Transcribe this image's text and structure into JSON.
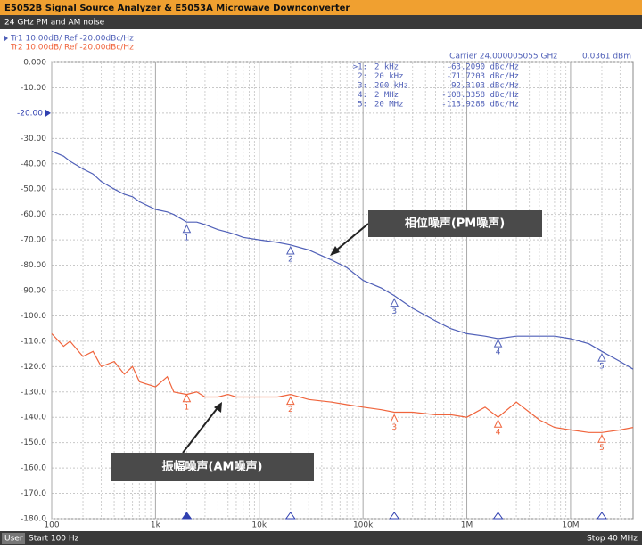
{
  "header": {
    "title": "E5052B Signal Source Analyzer & E5053A Microwave Downconverter",
    "subtitle": "24 GHz PM and AM noise"
  },
  "footer": {
    "mode": "User",
    "start": "Start 100 Hz",
    "stop": "Stop 40 MHz"
  },
  "chart_data": {
    "type": "line",
    "log_x": true,
    "grid": true,
    "minor_grid": true,
    "legend": [
      "Tr1 10.00dB/ Ref -20.00dBc/Hz",
      "Tr2 10.00dB/ Ref -20.00dBc/Hz"
    ],
    "carrier": "Carrier 24.000005055 GHz",
    "power": "0.0361 dBm",
    "reference": -20,
    "marker_table": [
      [
        ">1:",
        "2 kHz",
        "-63.2090 dBc/Hz"
      ],
      [
        "2:",
        "20 kHz",
        "-71.7203 dBc/Hz"
      ],
      [
        "3:",
        "200 kHz",
        "-92.3103 dBc/Hz"
      ],
      [
        "4:",
        "2 MHz",
        "-108.3358 dBc/Hz"
      ],
      [
        "5:",
        "20 MHz",
        "-113.9288 dBc/Hz"
      ]
    ],
    "annotations": [
      "相位噪声(PM噪声)",
      "振幅噪声(AM噪声)"
    ],
    "xlim": [
      100,
      40000000
    ],
    "ylim": [
      -180,
      0
    ],
    "xticks": [
      100,
      {
        "value": 1000,
        "label": "1k"
      },
      {
        "value": 10000,
        "label": "10k"
      },
      {
        "value": 100000,
        "label": "100k"
      },
      {
        "value": 1000000,
        "label": "1M"
      },
      {
        "value": 10000000,
        "label": "10M"
      }
    ],
    "yticks": [
      {
        "value": 0,
        "label": "0.000"
      },
      {
        "value": -10,
        "label": "-10.00"
      },
      {
        "value": -20,
        "label": "-20.00"
      },
      {
        "value": -30,
        "label": "-30.00"
      },
      {
        "value": -40,
        "label": "-40.00"
      },
      {
        "value": -50,
        "label": "-50.00"
      },
      {
        "value": -60,
        "label": "-60.00"
      },
      {
        "value": -70,
        "label": "-70.00"
      },
      {
        "value": -80,
        "label": "-80.00"
      },
      {
        "value": -90,
        "label": "-90.00"
      },
      {
        "value": -100,
        "label": "-100.0"
      },
      {
        "value": -110,
        "label": "-110.0"
      },
      {
        "value": -120,
        "label": "-120.0"
      },
      {
        "value": -130,
        "label": "-130.0"
      },
      {
        "value": -140,
        "label": "-140.0"
      },
      {
        "value": -150,
        "label": "-150.0"
      },
      {
        "value": -160,
        "label": "-160.0"
      },
      {
        "value": -170,
        "label": "-170.0"
      },
      {
        "value": -180,
        "label": "-180.0"
      }
    ],
    "x": [
      100,
      130,
      150,
      200,
      250,
      300,
      400,
      500,
      600,
      700,
      1000,
      1300,
      1500,
      2000,
      2500,
      3000,
      4000,
      5000,
      6000,
      7000,
      10000,
      15000,
      20000,
      30000,
      50000,
      70000,
      100000,
      150000,
      200000,
      300000,
      500000,
      700000,
      1000000,
      1500000,
      2000000,
      3000000,
      5000000,
      7000000,
      10000000,
      15000000,
      20000000,
      30000000,
      40000000
    ],
    "series": [
      {
        "name": "Tr1",
        "color": "#5060b8",
        "values": [
          -35,
          -37,
          -39,
          -42,
          -44,
          -47,
          -50,
          -52,
          -53,
          -55,
          -58,
          -59,
          -60,
          -63,
          -63,
          -64,
          -66,
          -67,
          -68,
          -69,
          -70,
          -71,
          -72,
          -74,
          -78,
          -81,
          -86,
          -89,
          -92,
          -97,
          -102,
          -105,
          -107,
          -108,
          -109,
          -108,
          -108,
          -108,
          -109,
          -111,
          -114,
          -118,
          -121
        ],
        "markers": [
          {
            "label": "1",
            "x": 2000,
            "y": -63.209
          },
          {
            "label": "2",
            "x": 20000,
            "y": -71.7203
          },
          {
            "label": "3",
            "x": 200000,
            "y": -92.3103
          },
          {
            "label": "4",
            "x": 2000000,
            "y": -108.3358
          },
          {
            "label": "5",
            "x": 20000000,
            "y": -113.9288
          }
        ]
      },
      {
        "name": "Tr2",
        "color": "#f0643c",
        "values": [
          -107,
          -112,
          -110,
          -116,
          -114,
          -120,
          -118,
          -123,
          -120,
          -126,
          -128,
          -124,
          -130,
          -131,
          -130,
          -132,
          -132,
          -131,
          -132,
          -132,
          -132,
          -132,
          -131,
          -133,
          -134,
          -135,
          -136,
          -137,
          -138,
          -138,
          -139,
          -139,
          -140,
          -136,
          -140,
          -134,
          -141,
          -144,
          -145,
          -146,
          -146,
          -145,
          -144
        ],
        "markers": [
          {
            "label": "1",
            "x": 2000,
            "y": -130
          },
          {
            "label": "2",
            "x": 20000,
            "y": -131
          },
          {
            "label": "3",
            "x": 200000,
            "y": -138
          },
          {
            "label": "4",
            "x": 2000000,
            "y": -140
          },
          {
            "label": "5",
            "x": 20000000,
            "y": -146
          }
        ]
      }
    ]
  }
}
